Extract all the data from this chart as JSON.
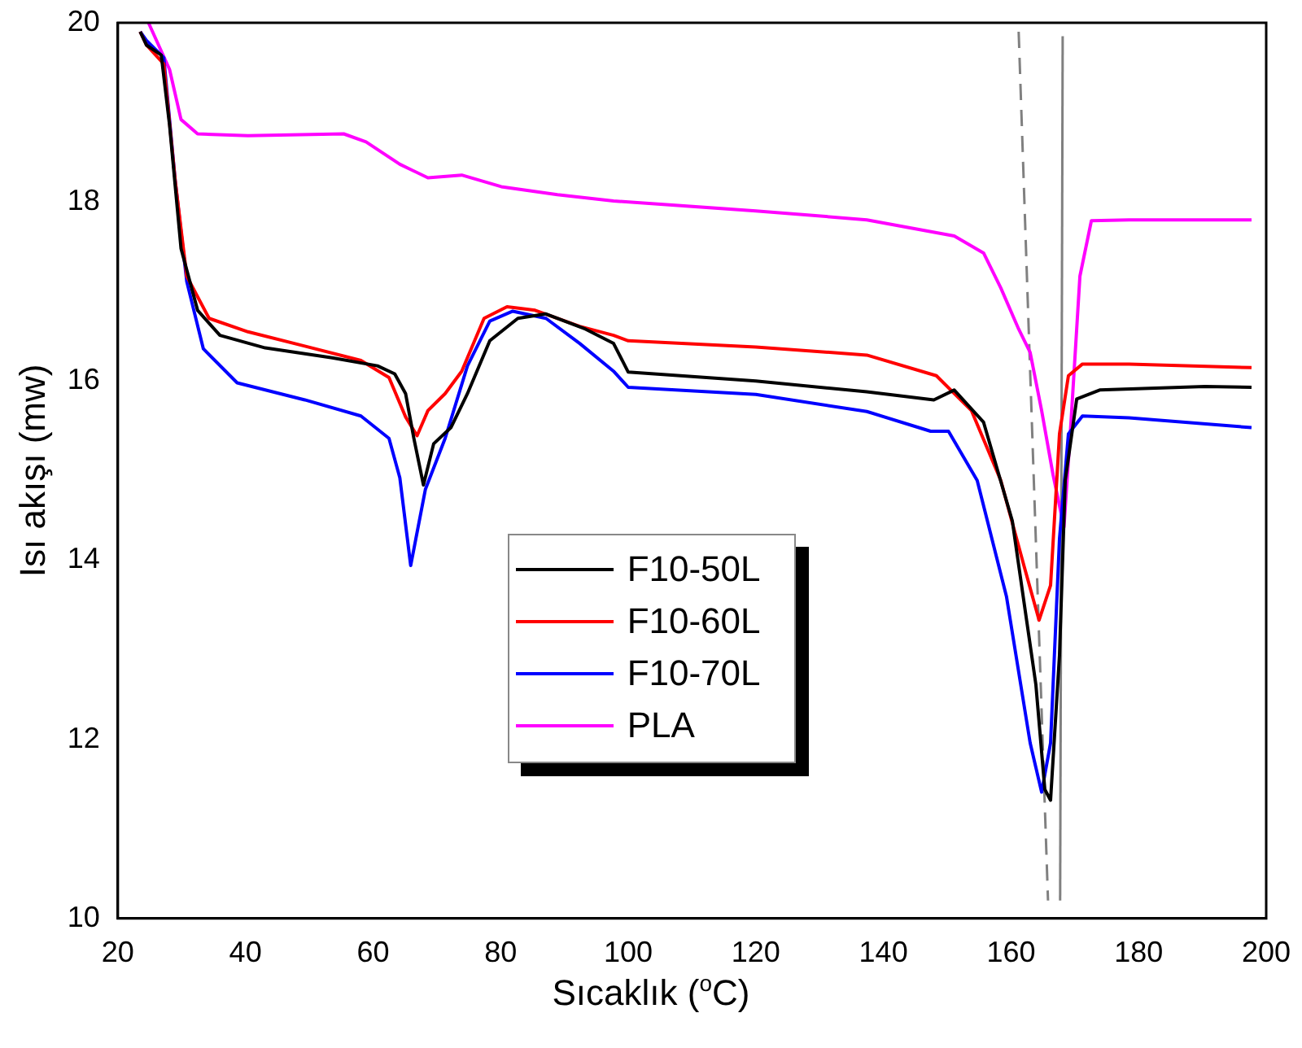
{
  "chart_data": {
    "type": "line",
    "xlabel": "Sıcaklık ($^{o}$C)",
    "ylabel": "Isı akışı (mw)",
    "xlim": [
      20,
      200
    ],
    "xticks": [
      20,
      40,
      60,
      80,
      100,
      120,
      140,
      160,
      180,
      200
    ],
    "ylim": [
      10,
      20
    ],
    "yticks": [
      10,
      12,
      14,
      16,
      18,
      20
    ],
    "grid": false,
    "legend": "bottom",
    "marker": "none",
    "line_style": "solid",
    "series": [
      {
        "name": "F10-50L",
        "color": "#000000",
        "x": [
          23.5,
          24.5,
          26.8,
          28.1,
          29.9,
          32.5,
          36.0,
          43.1,
          53.6,
          60.7,
          63.4,
          65.1,
          66.4,
          67.9,
          69.5,
          72.2,
          74.8,
          78.3,
          82.7,
          87.1,
          93.3,
          97.7,
          100,
          120,
          137.4,
          147.9,
          151.1,
          155.7,
          160.2,
          163.9,
          165.3,
          166.2,
          167.6,
          168.5,
          170.3,
          173.9,
          190.4,
          197.7
        ],
        "values": [
          19.9,
          19.75,
          19.64,
          18.86,
          17.48,
          16.79,
          16.51,
          16.37,
          16.26,
          16.17,
          16.08,
          15.86,
          15.36,
          14.84,
          15.3,
          15.48,
          15.86,
          16.45,
          16.7,
          16.75,
          16.58,
          16.42,
          16.1,
          16.0,
          15.88,
          15.79,
          15.9,
          15.54,
          14.44,
          12.61,
          11.44,
          11.32,
          12.94,
          14.89,
          15.8,
          15.9,
          15.94,
          15.93
        ]
      },
      {
        "name": "F10-60L",
        "color": "#ff0000",
        "x": [
          23.5,
          24.5,
          27.2,
          29.0,
          30.8,
          34.3,
          40.4,
          49.3,
          58.1,
          62.5,
          65.1,
          66.9,
          68.6,
          71.3,
          73.9,
          77.4,
          81.0,
          85.4,
          92.4,
          97.7,
          100,
          120,
          137.4,
          148.3,
          153.8,
          158.4,
          162.1,
          164.4,
          166.2,
          167.6,
          169.0,
          171.2,
          178.5,
          197.7
        ],
        "values": [
          19.9,
          19.75,
          19.54,
          18.23,
          17.17,
          16.7,
          16.55,
          16.39,
          16.23,
          16.04,
          15.6,
          15.39,
          15.67,
          15.86,
          16.11,
          16.7,
          16.83,
          16.79,
          16.61,
          16.51,
          16.45,
          16.38,
          16.29,
          16.06,
          15.67,
          14.89,
          13.92,
          13.33,
          13.72,
          15.41,
          16.06,
          16.19,
          16.19,
          16.15
        ]
      },
      {
        "name": "F10-70L",
        "color": "#0000ff",
        "x": [
          23.5,
          24.5,
          27.2,
          29.0,
          30.8,
          33.4,
          38.7,
          49.3,
          58.1,
          62.5,
          64.2,
          65.9,
          68.2,
          71.3,
          74.8,
          78.3,
          81.9,
          87.1,
          92.4,
          97.7,
          100,
          120,
          137.4,
          147.4,
          150.2,
          154.7,
          159.3,
          163.0,
          164.8,
          166.2,
          167.6,
          169.0,
          171.2,
          178.5,
          197.7
        ],
        "values": [
          19.9,
          19.8,
          19.61,
          18.23,
          17.11,
          16.36,
          15.98,
          15.79,
          15.61,
          15.36,
          14.92,
          13.94,
          14.79,
          15.36,
          16.17,
          16.67,
          16.78,
          16.7,
          16.42,
          16.11,
          15.93,
          15.85,
          15.66,
          15.44,
          15.44,
          14.89,
          13.59,
          11.96,
          11.41,
          11.96,
          14.24,
          15.41,
          15.61,
          15.59,
          15.48
        ]
      },
      {
        "name": "PLA",
        "color": "#ff00ff",
        "x": [
          24.8,
          28.1,
          29.9,
          32.5,
          40.4,
          55.4,
          58.9,
          64.2,
          68.6,
          73.9,
          80.1,
          88.9,
          97.7,
          120,
          137.4,
          151.1,
          155.7,
          158.4,
          161.2,
          163.0,
          164.8,
          166.6,
          168.3,
          169.4,
          170.8,
          172.6,
          178.5,
          197.7
        ],
        "values": [
          20.0,
          19.48,
          18.92,
          18.76,
          18.74,
          18.76,
          18.67,
          18.42,
          18.27,
          18.3,
          18.17,
          18.08,
          18.01,
          17.9,
          17.8,
          17.62,
          17.43,
          17.04,
          16.58,
          16.32,
          15.67,
          14.95,
          14.37,
          15.54,
          17.17,
          17.79,
          17.8,
          17.8
        ]
      },
      {
        "color": "#808080",
        "line_style": "dashed",
        "x": [
          161.2,
          165.8
        ],
        "values": [
          19.9,
          10.2
        ]
      },
      {
        "color": "#808080",
        "line_style": "solid",
        "x": [
          168.1,
          167.7
        ],
        "values": [
          19.85,
          10.2
        ]
      }
    ]
  }
}
